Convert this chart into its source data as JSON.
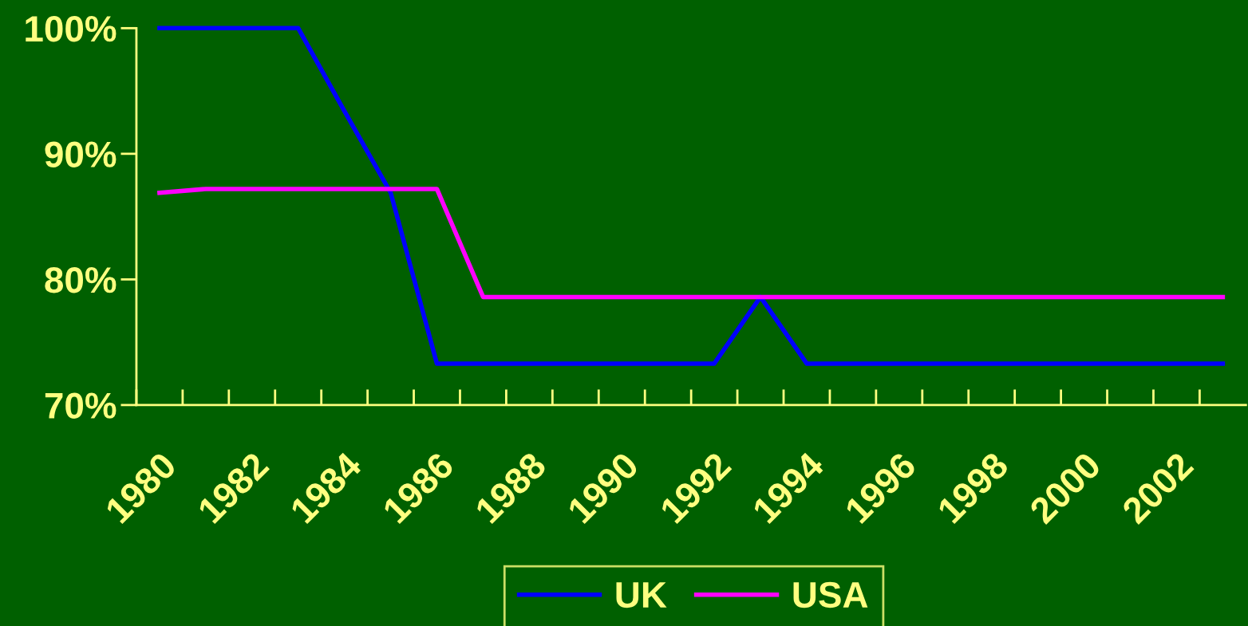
{
  "chart_data": {
    "type": "line",
    "categories": [
      "1980",
      null,
      "1982",
      null,
      "1984",
      null,
      "1986",
      null,
      "1988",
      null,
      "1990",
      null,
      "1992",
      null,
      "1994",
      null,
      "1996",
      null,
      "1998",
      null,
      "2000",
      null,
      "2002",
      null
    ],
    "series": [
      {
        "name": "UK",
        "color": "#0000ff",
        "values": [
          100,
          100,
          100,
          100,
          93.4,
          86.9,
          73.3,
          73.3,
          73.3,
          73.3,
          73.3,
          73.3,
          73.3,
          78.6,
          73.3,
          73.3,
          73.3,
          73.3,
          73.3,
          73.3,
          73.3,
          73.3,
          73.3,
          73.3
        ]
      },
      {
        "name": "USA",
        "color": "#ff00ff",
        "values": [
          86.9,
          87.2,
          87.2,
          87.2,
          87.2,
          87.2,
          87.2,
          78.6,
          78.6,
          78.6,
          78.6,
          78.6,
          78.6,
          78.6,
          78.6,
          78.6,
          78.6,
          78.6,
          78.6,
          78.6,
          78.6,
          78.6,
          78.6,
          78.6
        ]
      }
    ],
    "ylim": [
      70,
      100
    ],
    "yticks": [
      {
        "value": 70,
        "label": "70%"
      },
      {
        "value": 80,
        "label": "80%"
      },
      {
        "value": 90,
        "label": "90%"
      },
      {
        "value": 100,
        "label": "100%"
      }
    ],
    "grid": false,
    "legend": "bottom",
    "marker": "none",
    "line_style": "solid"
  }
}
